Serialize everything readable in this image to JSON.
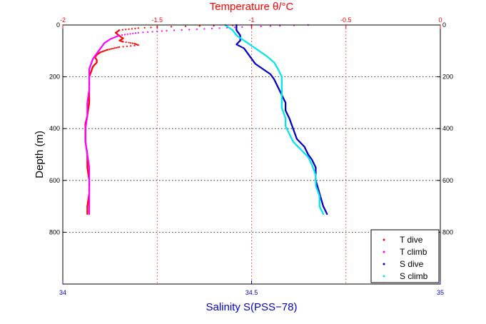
{
  "chart_data": {
    "type": "scatter",
    "y_axis": {
      "label": "Depth (m)",
      "range": [
        0,
        1000
      ],
      "inverted": true,
      "ticks": [
        0,
        200,
        400,
        600,
        800
      ],
      "tick_labels": [
        "0",
        "200",
        "400",
        "600",
        "800"
      ],
      "color": "#000000"
    },
    "top_axis": {
      "label": "Temperature θ/°C",
      "range": [
        -2,
        0
      ],
      "ticks": [
        -2,
        -1.5,
        -1,
        -0.5,
        0
      ],
      "tick_labels": [
        "-2",
        "-1.5",
        "-1",
        "-0.5",
        "0"
      ],
      "color": "#ff0000"
    },
    "bottom_axis": {
      "label": "Salinity S(PSS−78)",
      "range": [
        34,
        35
      ],
      "ticks": [
        34,
        34.5,
        35
      ],
      "tick_labels": [
        "34",
        "34.5",
        "35"
      ],
      "color": "#0000cc"
    },
    "grid": true,
    "legend_position": "bottom-right",
    "series": [
      {
        "name": "T dive",
        "axis": "temperature",
        "color": "#ff0000",
        "points": [
          [
            -1.0,
            0
          ],
          [
            -1.2,
            3
          ],
          [
            -1.35,
            5
          ],
          [
            -1.5,
            8
          ],
          [
            -1.6,
            12
          ],
          [
            -1.7,
            20
          ],
          [
            -1.72,
            30
          ],
          [
            -1.7,
            42
          ],
          [
            -1.68,
            52
          ],
          [
            -1.7,
            60
          ],
          [
            -1.68,
            65
          ],
          [
            -1.65,
            68
          ],
          [
            -1.62,
            72
          ],
          [
            -1.6,
            78
          ],
          [
            -1.7,
            85
          ],
          [
            -1.76,
            95
          ],
          [
            -1.8,
            105
          ],
          [
            -1.82,
            115
          ],
          [
            -1.83,
            125
          ],
          [
            -1.82,
            135
          ],
          [
            -1.82,
            145
          ],
          [
            -1.84,
            160
          ],
          [
            -1.85,
            180
          ],
          [
            -1.86,
            200
          ],
          [
            -1.86,
            250
          ],
          [
            -1.86,
            300
          ],
          [
            -1.87,
            350
          ],
          [
            -1.88,
            380
          ],
          [
            -1.88,
            410
          ],
          [
            -1.88,
            450
          ],
          [
            -1.87,
            500
          ],
          [
            -1.87,
            550
          ],
          [
            -1.86,
            600
          ],
          [
            -1.86,
            650
          ],
          [
            -1.87,
            700
          ],
          [
            -1.87,
            730
          ]
        ]
      },
      {
        "name": "T climb",
        "axis": "temperature",
        "color": "#ff00ff",
        "points": [
          [
            -0.7,
            0
          ],
          [
            -0.85,
            3
          ],
          [
            -1.05,
            8
          ],
          [
            -1.25,
            15
          ],
          [
            -1.45,
            22
          ],
          [
            -1.6,
            30
          ],
          [
            -1.7,
            40
          ],
          [
            -1.75,
            55
          ],
          [
            -1.78,
            70
          ],
          [
            -1.8,
            90
          ],
          [
            -1.82,
            110
          ],
          [
            -1.84,
            130
          ],
          [
            -1.85,
            150
          ],
          [
            -1.86,
            170
          ],
          [
            -1.86,
            200
          ],
          [
            -1.86,
            250
          ],
          [
            -1.87,
            300
          ],
          [
            -1.87,
            350
          ],
          [
            -1.88,
            400
          ],
          [
            -1.88,
            450
          ],
          [
            -1.87,
            500
          ],
          [
            -1.86,
            550
          ],
          [
            -1.86,
            600
          ],
          [
            -1.86,
            650
          ],
          [
            -1.86,
            700
          ],
          [
            -1.86,
            730
          ]
        ]
      },
      {
        "name": "S dive",
        "axis": "salinity",
        "color": "#0000cc",
        "points": [
          [
            34.46,
            0
          ],
          [
            34.46,
            20
          ],
          [
            34.47,
            40
          ],
          [
            34.47,
            60
          ],
          [
            34.46,
            75
          ],
          [
            34.48,
            90
          ],
          [
            34.49,
            110
          ],
          [
            34.5,
            130
          ],
          [
            34.51,
            150
          ],
          [
            34.53,
            170
          ],
          [
            34.55,
            190
          ],
          [
            34.56,
            210
          ],
          [
            34.57,
            240
          ],
          [
            34.58,
            270
          ],
          [
            34.59,
            300
          ],
          [
            34.59,
            330
          ],
          [
            34.6,
            360
          ],
          [
            34.61,
            400
          ],
          [
            34.62,
            440
          ],
          [
            34.64,
            470
          ],
          [
            34.65,
            500
          ],
          [
            34.66,
            520
          ],
          [
            34.67,
            550
          ],
          [
            34.67,
            600
          ],
          [
            34.68,
            650
          ],
          [
            34.69,
            700
          ],
          [
            34.7,
            730
          ]
        ]
      },
      {
        "name": "S climb",
        "axis": "salinity",
        "color": "#00e5ee",
        "points": [
          [
            34.43,
            0
          ],
          [
            34.45,
            20
          ],
          [
            34.46,
            40
          ],
          [
            34.48,
            60
          ],
          [
            34.5,
            80
          ],
          [
            34.52,
            100
          ],
          [
            34.54,
            120
          ],
          [
            34.56,
            145
          ],
          [
            34.57,
            170
          ],
          [
            34.58,
            200
          ],
          [
            34.58,
            240
          ],
          [
            34.58,
            280
          ],
          [
            34.58,
            320
          ],
          [
            34.59,
            360
          ],
          [
            34.59,
            390
          ],
          [
            34.6,
            420
          ],
          [
            34.61,
            450
          ],
          [
            34.63,
            480
          ],
          [
            34.65,
            510
          ],
          [
            34.66,
            540
          ],
          [
            34.67,
            580
          ],
          [
            34.67,
            620
          ],
          [
            34.68,
            660
          ],
          [
            34.68,
            700
          ],
          [
            34.69,
            730
          ]
        ]
      }
    ]
  }
}
